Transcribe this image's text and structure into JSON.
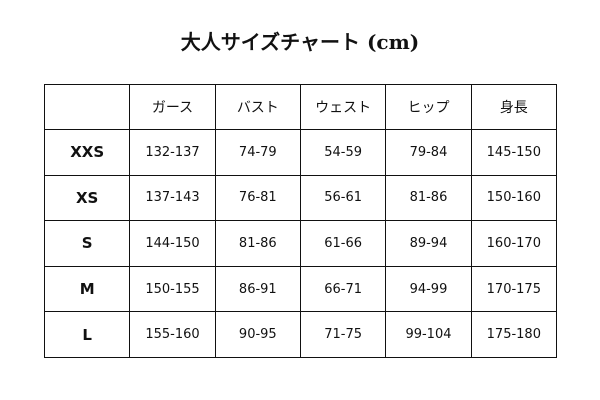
{
  "header": {
    "title": "大人サイズチャート (cm)"
  },
  "table": {
    "columns": [
      "ガース",
      "バスト",
      "ウェスト",
      "ヒップ",
      "身長"
    ],
    "rows": [
      {
        "size": "XXS",
        "cells": [
          "132-137",
          "74-79",
          "54-59",
          "79-84",
          "145-150"
        ]
      },
      {
        "size": "XS",
        "cells": [
          "137-143",
          "76-81",
          "56-61",
          "81-86",
          "150-160"
        ]
      },
      {
        "size": "S",
        "cells": [
          "144-150",
          "81-86",
          "61-66",
          "89-94",
          "160-170"
        ]
      },
      {
        "size": "M",
        "cells": [
          "150-155",
          "86-91",
          "66-71",
          "94-99",
          "170-175"
        ]
      },
      {
        "size": "L",
        "cells": [
          "155-160",
          "90-95",
          "71-75",
          "99-104",
          "175-180"
        ]
      }
    ]
  }
}
